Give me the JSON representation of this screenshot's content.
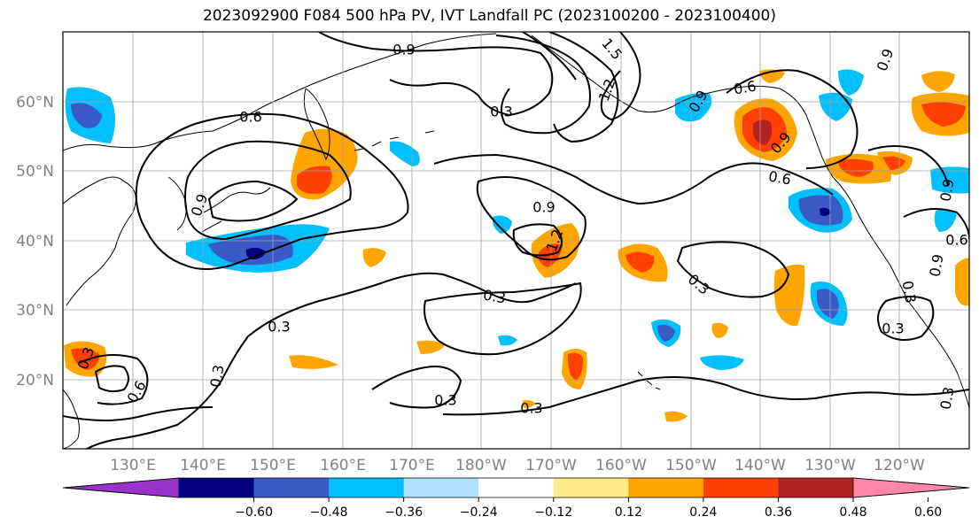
{
  "title": "2023092900 F084 500 hPa PV, IVT Landfall PC (2023100200 - 2023100400)",
  "lat_labels": [
    "60°N",
    "50°N",
    "40°N",
    "30°N",
    "20°N"
  ],
  "lon_labels": [
    "130°E",
    "140°E",
    "150°E",
    "160°E",
    "170°E",
    "180°W",
    "170°W",
    "160°W",
    "150°W",
    "140°W",
    "130°W",
    "120°W"
  ],
  "colorbar": {
    "colors": [
      "#9933cc",
      "#000080",
      "#3a5ac8",
      "#00bfff",
      "#b0e0ff",
      "#ffffff",
      "#ffeb88",
      "#ffa500",
      "#ff4000",
      "#b22222",
      "#ff88aa"
    ],
    "tick_labels": [
      "−0.60",
      "−0.48",
      "−0.36",
      "−0.24",
      "−0.12",
      "0.12",
      "0.24",
      "0.36",
      "0.48",
      "0.60"
    ]
  },
  "contour_labels": [
    "0.9",
    "1.5",
    "1.2",
    "0.3",
    "0.6",
    "0.6",
    "0.9",
    "0.9",
    "0.6",
    "0.9",
    "0.9",
    "1.2",
    "0.3",
    "0.3",
    "0.3",
    "0.3",
    "0.3",
    "0.3",
    "0.6",
    "0.3",
    "0.3",
    "0.3",
    "0.3",
    "0.9",
    "0.9",
    "0.9",
    "0.6"
  ],
  "colors": {
    "contour": "#000000",
    "grid": "#a0a0a0",
    "frame": "#000000"
  }
}
